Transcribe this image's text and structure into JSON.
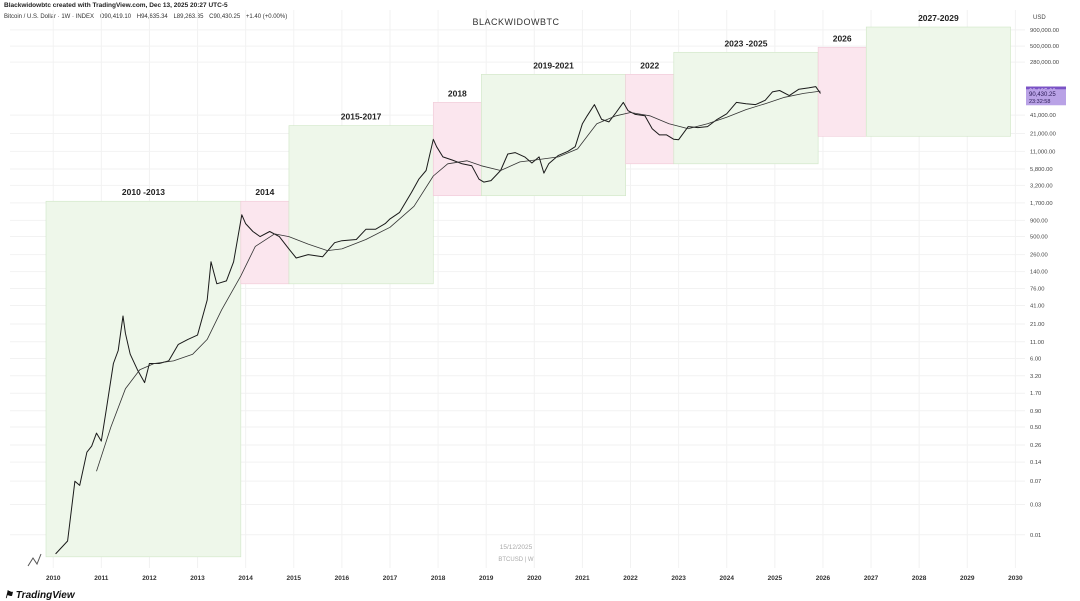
{
  "header": {
    "creator": "Blackwidowbtc created with TradingView.com, Dec 13, 2025 20:27 UTC-5",
    "symbol": "Bitcoin / U.S. Dollar · 1W · INDEX",
    "ohlc": {
      "open": "O90,419.10",
      "high": "H94,635.34",
      "low": "L89,263.35",
      "close": "C90,430.25",
      "change": "+1.40 (+0.00%)"
    }
  },
  "footer": {
    "date": "15/12/2025",
    "ticker": "BTCUSD | W",
    "logo": "TradingView"
  },
  "colors": {
    "green_zone": "#eef7ea",
    "pink_zone": "#fbe6ee",
    "price_line": "#1a1a1a",
    "ma_line": "#333333",
    "price_tag": "#7b53c6",
    "ma_tag": "#b9a2e6"
  },
  "chart_data": {
    "type": "line",
    "title": "BLACKWIDOWBTC",
    "yscale": "log",
    "y_axis_title": "USD",
    "ylim": [
      0.003,
      1200000
    ],
    "xlim": [
      2009.85,
      2030.2
    ],
    "x_ticks": [
      "2010",
      "2011",
      "2012",
      "2013",
      "2014",
      "2015",
      "2016",
      "2017",
      "2018",
      "2019",
      "2020",
      "2021",
      "2022",
      "2023",
      "2024",
      "2025",
      "2026",
      "2027",
      "2028",
      "2029",
      "2030"
    ],
    "y_ticks": [
      {
        "v": 900000,
        "label": "900,000.00"
      },
      {
        "v": 500000,
        "label": "500,000.00"
      },
      {
        "v": 280000,
        "label": "280,000.00"
      },
      {
        "v": 41000,
        "label": "41,000.00"
      },
      {
        "v": 21000,
        "label": "21,000.00"
      },
      {
        "v": 11000,
        "label": "11,000.00"
      },
      {
        "v": 5800,
        "label": "5,800.00"
      },
      {
        "v": 3200,
        "label": "3,200.00"
      },
      {
        "v": 1700,
        "label": "1,700.00"
      },
      {
        "v": 900,
        "label": "900.00"
      },
      {
        "v": 500,
        "label": "500.00"
      },
      {
        "v": 260,
        "label": "260.00"
      },
      {
        "v": 140,
        "label": "140.00"
      },
      {
        "v": 76,
        "label": "76.00"
      },
      {
        "v": 41,
        "label": "41.00"
      },
      {
        "v": 21,
        "label": "21.00"
      },
      {
        "v": 11,
        "label": "11.00"
      },
      {
        "v": 6,
        "label": "6.00"
      },
      {
        "v": 3.2,
        "label": "3.20"
      },
      {
        "v": 1.7,
        "label": "1.70"
      },
      {
        "v": 0.9,
        "label": "0.90"
      },
      {
        "v": 0.5,
        "label": "0.50"
      },
      {
        "v": 0.26,
        "label": "0.26"
      },
      {
        "v": 0.14,
        "label": "0.14"
      },
      {
        "v": 0.07,
        "label": "0.07"
      },
      {
        "v": 0.03,
        "label": "0.03"
      },
      {
        "v": 0.01,
        "label": "0.01"
      }
    ],
    "last_price_tags": [
      {
        "label": "98,135.60",
        "v": 98135.6,
        "kind": "ma"
      },
      {
        "label": "90,430.25",
        "v": 90430.25,
        "kind": "price"
      },
      {
        "label": "23:32:58",
        "kind": "timer"
      }
    ],
    "zones": [
      {
        "label": "2010 -2013",
        "x0": 2009.85,
        "x1": 2013.9,
        "y0": 0.0045,
        "y1": 1800,
        "color": "green"
      },
      {
        "label": "2014",
        "x0": 2013.9,
        "x1": 2014.9,
        "y0": 90,
        "y1": 1800,
        "color": "pink"
      },
      {
        "label": "2015-2017",
        "x0": 2014.9,
        "x1": 2017.9,
        "y0": 90,
        "y1": 28000,
        "color": "green"
      },
      {
        "label": "2018",
        "x0": 2017.9,
        "x1": 2018.9,
        "y0": 2200,
        "y1": 65000,
        "color": "pink"
      },
      {
        "label": "2019-2021",
        "x0": 2018.9,
        "x1": 2021.9,
        "y0": 2200,
        "y1": 180000,
        "color": "green"
      },
      {
        "label": "2022",
        "x0": 2021.9,
        "x1": 2022.9,
        "y0": 7000,
        "y1": 180000,
        "color": "pink"
      },
      {
        "label": "2023 -2025",
        "x0": 2022.9,
        "x1": 2025.9,
        "y0": 7000,
        "y1": 400000,
        "color": "green"
      },
      {
        "label": "2026",
        "x0": 2025.9,
        "x1": 2026.9,
        "y0": 19000,
        "y1": 480000,
        "color": "pink"
      },
      {
        "label": "2027-2029",
        "x0": 2026.9,
        "x1": 2029.9,
        "y0": 19000,
        "y1": 1000000,
        "color": "green"
      }
    ],
    "series": [
      {
        "kind": "price",
        "x": [
          2010.05,
          2010.3,
          2010.45,
          2010.55,
          2010.7,
          2010.8,
          2010.9,
          2011.0,
          2011.1,
          2011.25,
          2011.35,
          2011.45,
          2011.5,
          2011.6,
          2011.75,
          2011.9,
          2012.0,
          2012.2,
          2012.4,
          2012.6,
          2012.8,
          2013.0,
          2013.2,
          2013.28,
          2013.4,
          2013.6,
          2013.75,
          2013.92,
          2014.0,
          2014.15,
          2014.3,
          2014.5,
          2014.7,
          2014.9,
          2015.05,
          2015.3,
          2015.6,
          2015.85,
          2016.0,
          2016.3,
          2016.5,
          2016.7,
          2016.9,
          2017.0,
          2017.2,
          2017.45,
          2017.6,
          2017.75,
          2017.9,
          2017.97,
          2018.1,
          2018.3,
          2018.5,
          2018.7,
          2018.85,
          2018.95,
          2019.1,
          2019.3,
          2019.45,
          2019.6,
          2019.8,
          2019.95,
          2020.1,
          2020.2,
          2020.3,
          2020.5,
          2020.7,
          2020.85,
          2021.0,
          2021.1,
          2021.25,
          2021.4,
          2021.55,
          2021.7,
          2021.85,
          2021.95,
          2022.1,
          2022.3,
          2022.45,
          2022.6,
          2022.75,
          2022.9,
          2023.0,
          2023.2,
          2023.4,
          2023.6,
          2023.8,
          2024.0,
          2024.2,
          2024.4,
          2024.6,
          2024.8,
          2024.95,
          2025.1,
          2025.3,
          2025.5,
          2025.7,
          2025.85,
          2025.95
        ],
        "y": [
          0.005,
          0.008,
          0.07,
          0.06,
          0.2,
          0.25,
          0.4,
          0.3,
          0.9,
          5,
          8,
          28,
          15,
          7,
          4,
          2.5,
          5,
          5,
          5.5,
          10,
          12,
          14,
          50,
          200,
          90,
          100,
          200,
          1100,
          800,
          600,
          500,
          600,
          500,
          320,
          230,
          260,
          240,
          400,
          430,
          450,
          650,
          650,
          800,
          950,
          1200,
          2500,
          4000,
          5500,
          17000,
          13000,
          9000,
          8000,
          7000,
          6500,
          4000,
          3600,
          3800,
          5500,
          10000,
          10500,
          9000,
          7200,
          9000,
          5000,
          7000,
          9500,
          11000,
          13000,
          30000,
          40000,
          60000,
          35000,
          32000,
          45000,
          65000,
          48000,
          42000,
          40000,
          25000,
          20000,
          20000,
          17000,
          16800,
          27000,
          26000,
          27000,
          35000,
          43000,
          65000,
          62000,
          60000,
          70000,
          95000,
          100000,
          83000,
          105000,
          110000,
          115000,
          90000
        ]
      },
      {
        "kind": "ma",
        "x": [
          2010.9,
          2011.2,
          2011.5,
          2011.8,
          2012.1,
          2012.5,
          2012.9,
          2013.2,
          2013.5,
          2013.9,
          2014.2,
          2014.6,
          2014.9,
          2015.3,
          2015.7,
          2016.0,
          2016.5,
          2017.0,
          2017.5,
          2017.9,
          2018.2,
          2018.6,
          2018.9,
          2019.3,
          2019.7,
          2020.0,
          2020.5,
          2020.9,
          2021.3,
          2021.7,
          2022.0,
          2022.4,
          2022.8,
          2023.2,
          2023.6,
          2024.0,
          2024.4,
          2024.8,
          2025.2,
          2025.6,
          2025.95
        ],
        "y": [
          0.1,
          0.5,
          2,
          4,
          5,
          5.5,
          7,
          12,
          35,
          120,
          350,
          550,
          500,
          380,
          300,
          320,
          450,
          700,
          1500,
          4500,
          7000,
          7800,
          6500,
          5500,
          7500,
          8000,
          9000,
          12000,
          30000,
          40000,
          45000,
          40000,
          30000,
          25000,
          30000,
          38000,
          50000,
          62000,
          78000,
          90000,
          98000
        ]
      }
    ]
  }
}
